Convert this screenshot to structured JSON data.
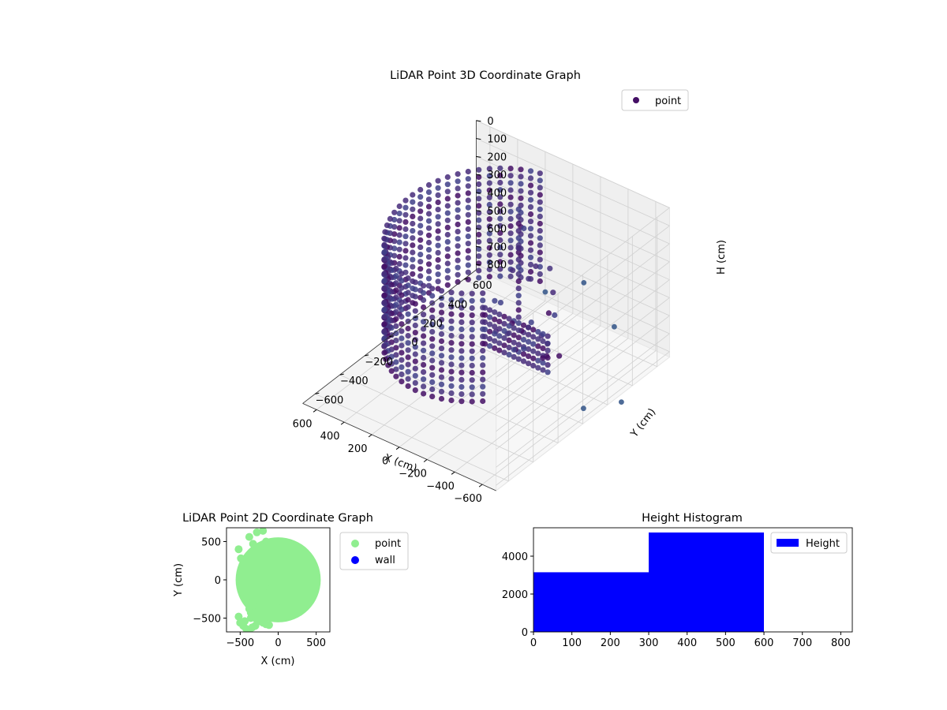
{
  "chart_data": [
    {
      "type": "scatter",
      "title": "LiDAR Point 3D Coordinate Graph",
      "xlabel": "X (cm)",
      "ylabel": "Y (cm)",
      "zlabel": "H (cm)",
      "xlim": [
        -700,
        700
      ],
      "ylim": [
        -700,
        700
      ],
      "zlim": [
        0,
        830
      ],
      "z_inverted": true,
      "x_ticks": [
        -600,
        -400,
        -200,
        0,
        200,
        400,
        600
      ],
      "y_ticks": [
        -600,
        -400,
        -200,
        0,
        200,
        400,
        600
      ],
      "z_ticks": [
        0,
        100,
        200,
        300,
        400,
        500,
        600,
        700,
        800
      ],
      "legend": {
        "position": "top-right",
        "entries": [
          "point"
        ]
      },
      "series": [
        {
          "name": "point",
          "colormap": "viridis (dark purple)",
          "shape": {
            "arc_radius": 550,
            "arc_angles_deg": [
              -130,
              80
            ],
            "arc_heights": [
              0,
              600
            ],
            "fan_points": [
              [
                -400,
                60,
                350
              ],
              [
                -350,
                150,
                300
              ],
              [
                -300,
                30,
                420
              ],
              [
                -260,
                -80,
                380
              ],
              [
                -200,
                120,
                260
              ],
              [
                -480,
                -40,
                440
              ],
              [
                -380,
                -120,
                460
              ],
              [
                -120,
                80,
                220
              ],
              [
                -60,
                200,
                180
              ],
              [
                -150,
                -50,
                320
              ],
              [
                -220,
                40,
                500
              ],
              [
                -320,
                90,
                520
              ],
              [
                -420,
                20,
                560
              ],
              [
                -500,
                -100,
                480
              ],
              [
                -280,
                -140,
                400
              ],
              [
                -100,
                150,
                140
              ],
              [
                -40,
                260,
                110
              ],
              [
                -180,
                200,
                240
              ],
              [
                -240,
                -30,
                560
              ],
              [
                -360,
                -60,
                380
              ],
              [
                -460,
                40,
                330
              ],
              [
                -520,
                10,
                520
              ],
              [
                -300,
                180,
                200
              ],
              [
                -160,
                -100,
                450
              ],
              [
                -80,
                -20,
                350
              ]
            ],
            "outliers": [
              [
                -750,
                -50,
                700
              ],
              [
                -800,
                200,
                780
              ],
              [
                -300,
                700,
                800
              ],
              [
                200,
                700,
                780
              ],
              [
                100,
                900,
                800
              ]
            ]
          }
        }
      ]
    },
    {
      "type": "scatter",
      "title": "LiDAR Point 2D Coordinate Graph",
      "xlabel": "X (cm)",
      "ylabel": "Y (cm)",
      "xlim": [
        -680,
        680
      ],
      "ylim": [
        -680,
        680
      ],
      "x_ticks": [
        -500,
        0,
        500
      ],
      "y_ticks": [
        -500,
        0,
        500
      ],
      "legend": {
        "position": "outside right",
        "entries": [
          "point",
          "wall"
        ]
      },
      "series": [
        {
          "name": "point",
          "color": "#90ee90"
        },
        {
          "name": "wall",
          "color": "#0000ff"
        }
      ],
      "disk": {
        "center": [
          0,
          0
        ],
        "radius": 560
      },
      "scatter_points": [
        [
          -520,
          400
        ],
        [
          -490,
          280
        ],
        [
          -470,
          150
        ],
        [
          -440,
          -50
        ],
        [
          -420,
          -230
        ],
        [
          -400,
          -300
        ],
        [
          -380,
          -380
        ],
        [
          -360,
          -430
        ],
        [
          -340,
          -470
        ],
        [
          -300,
          -500
        ],
        [
          -280,
          -520
        ],
        [
          -250,
          -540
        ],
        [
          -200,
          -560
        ],
        [
          -160,
          -580
        ],
        [
          -120,
          -590
        ],
        [
          -520,
          -480
        ],
        [
          -500,
          -560
        ],
        [
          -460,
          -600
        ],
        [
          -420,
          -640
        ],
        [
          -380,
          -660
        ],
        [
          -340,
          -620
        ],
        [
          -300,
          -600
        ],
        [
          -260,
          -350
        ],
        [
          -230,
          -280
        ],
        [
          -180,
          -220
        ],
        [
          -150,
          -180
        ],
        [
          -100,
          -120
        ],
        [
          -60,
          -80
        ],
        [
          -20,
          -360
        ],
        [
          10,
          -480
        ],
        [
          -120,
          50
        ],
        [
          -80,
          120
        ],
        [
          -300,
          200
        ],
        [
          -250,
          300
        ],
        [
          -200,
          420
        ],
        [
          -160,
          500
        ],
        [
          -330,
          470
        ],
        [
          -380,
          560
        ],
        [
          -280,
          620
        ],
        [
          -200,
          640
        ],
        [
          -440,
          -540
        ],
        [
          -360,
          -500
        ],
        [
          -240,
          -420
        ],
        [
          -300,
          -250
        ],
        [
          -340,
          -200
        ],
        [
          -400,
          -160
        ],
        [
          -140,
          -300
        ],
        [
          -60,
          -260
        ]
      ]
    },
    {
      "type": "bar",
      "title": "Height Histogram",
      "xlabel": "",
      "ylabel": "",
      "xlim": [
        0,
        830
      ],
      "ylim": [
        0,
        5500
      ],
      "x_ticks": [
        0,
        100,
        200,
        300,
        400,
        500,
        600,
        700,
        800
      ],
      "y_ticks": [
        0,
        2000,
        4000
      ],
      "legend": {
        "position": "top-right",
        "entries": [
          "Height"
        ]
      },
      "color": "#0000ff",
      "bins": [
        {
          "start": 0,
          "end": 300,
          "count": 3150
        },
        {
          "start": 300,
          "end": 600,
          "count": 5250
        }
      ]
    }
  ]
}
